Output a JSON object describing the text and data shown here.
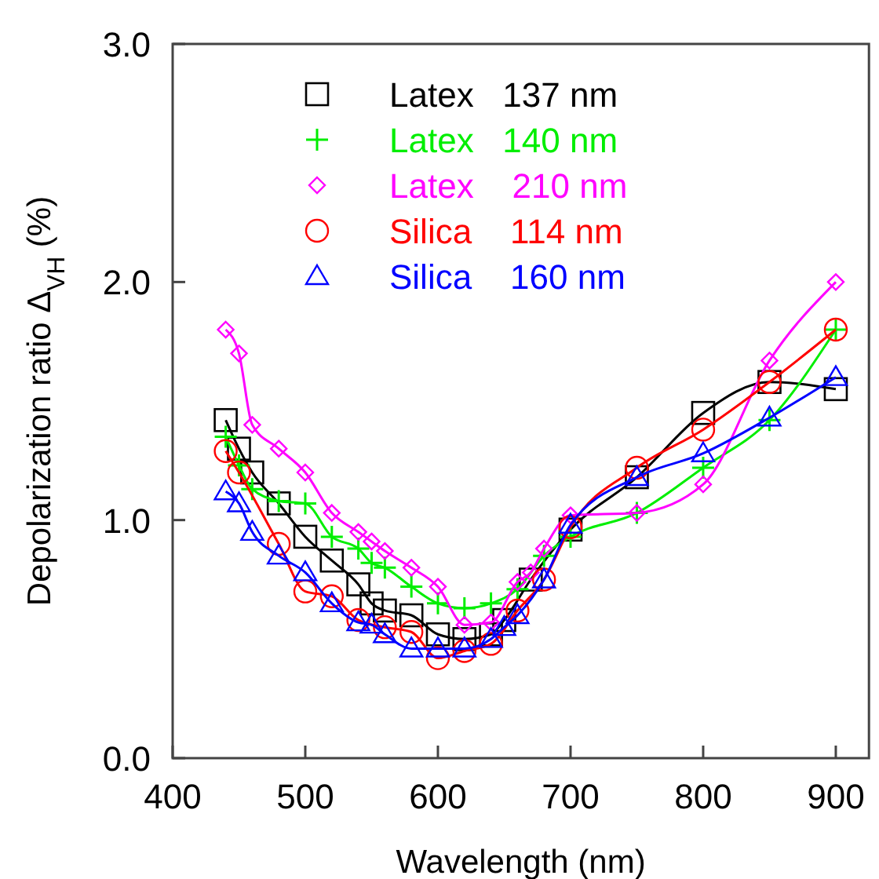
{
  "chart_data": {
    "type": "line",
    "xlabel": "Wavelength (nm)",
    "ylabel": "Depolarization ratio Δ$_{VH}$ (%)",
    "xlim": [
      400,
      925
    ],
    "xticks": [
      400,
      500,
      600,
      700,
      800,
      900
    ],
    "ylim": [
      0,
      3
    ],
    "yticks": [
      {
        "value": 0,
        "label": "0.0"
      },
      {
        "value": 1,
        "label": "1.0"
      },
      {
        "value": 2,
        "label": "2.0"
      },
      {
        "value": 3,
        "label": "3.0"
      }
    ],
    "legend": "top",
    "grid": false,
    "series": [
      {
        "name": "Latex   137 nm",
        "color": "#000000",
        "marker": "square",
        "x": [
          440,
          450,
          460,
          480,
          500,
          520,
          540,
          550,
          560,
          580,
          600,
          620,
          640,
          650,
          670,
          700,
          750,
          800,
          850,
          900
        ],
        "values": [
          1.42,
          1.3,
          1.2,
          1.07,
          0.93,
          0.83,
          0.73,
          0.65,
          0.62,
          0.6,
          0.52,
          0.5,
          0.52,
          0.58,
          0.75,
          0.96,
          1.18,
          1.45,
          1.58,
          1.55
        ]
      },
      {
        "name": "Latex   140 nm",
        "color": "#00ee00",
        "marker": "cross",
        "x": [
          440,
          450,
          460,
          480,
          500,
          520,
          540,
          550,
          560,
          580,
          600,
          620,
          640,
          660,
          680,
          700,
          750,
          800,
          850,
          900
        ],
        "values": [
          1.35,
          1.23,
          1.13,
          1.08,
          1.07,
          0.93,
          0.88,
          0.82,
          0.8,
          0.72,
          0.65,
          0.63,
          0.65,
          0.71,
          0.85,
          0.93,
          1.03,
          1.22,
          1.42,
          1.8
        ]
      },
      {
        "name": "Latex    210 nm",
        "color": "#ff00ff",
        "marker": "diamond",
        "x": [
          440,
          450,
          460,
          480,
          500,
          520,
          540,
          550,
          560,
          580,
          600,
          620,
          640,
          660,
          670,
          680,
          700,
          750,
          800,
          850,
          900
        ],
        "values": [
          1.8,
          1.7,
          1.4,
          1.3,
          1.2,
          1.03,
          0.95,
          0.91,
          0.87,
          0.8,
          0.72,
          0.56,
          0.57,
          0.74,
          0.78,
          0.88,
          1.02,
          1.03,
          1.15,
          1.67,
          2.0
        ]
      },
      {
        "name": "Silica    114 nm",
        "color": "#ff0000",
        "marker": "circle",
        "x": [
          440,
          450,
          480,
          500,
          520,
          540,
          560,
          580,
          600,
          620,
          640,
          660,
          680,
          700,
          750,
          800,
          850,
          900
        ],
        "values": [
          1.29,
          1.2,
          0.9,
          0.7,
          0.68,
          0.58,
          0.55,
          0.53,
          0.42,
          0.45,
          0.48,
          0.62,
          0.75,
          0.97,
          1.22,
          1.38,
          1.58,
          1.8
        ]
      },
      {
        "name": "Silica    160 nm",
        "color": "#0000ff",
        "marker": "triangle",
        "x": [
          440,
          450,
          460,
          480,
          500,
          520,
          540,
          550,
          560,
          580,
          600,
          620,
          640,
          650,
          660,
          680,
          700,
          750,
          800,
          850,
          900
        ],
        "values": [
          1.12,
          1.07,
          0.95,
          0.85,
          0.78,
          0.65,
          0.57,
          0.56,
          0.52,
          0.46,
          0.46,
          0.46,
          0.5,
          0.55,
          0.6,
          0.75,
          0.98,
          1.18,
          1.28,
          1.43,
          1.6
        ]
      }
    ]
  }
}
